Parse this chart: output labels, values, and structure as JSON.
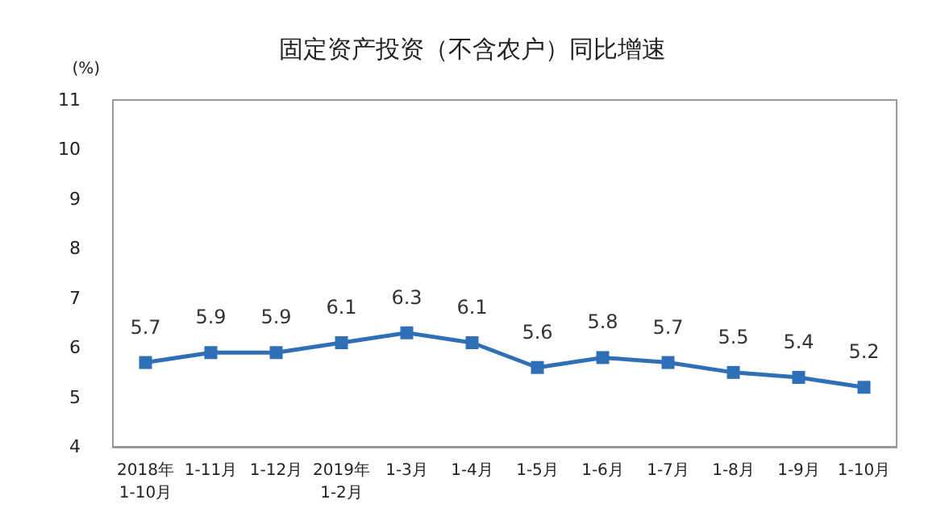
{
  "chart_data": {
    "type": "line",
    "title": "固定资产投资（不含农户）同比增速",
    "ylabel": "(%)",
    "categories": [
      "2018年\n1-10月",
      "1-11月",
      "1-12月",
      "2019年\n1-2月",
      "1-3月",
      "1-4月",
      "1-5月",
      "1-6月",
      "1-7月",
      "1-8月",
      "1-9月",
      "1-10月"
    ],
    "series": [
      {
        "color": "#2e6fb7",
        "values": [
          5.7,
          5.9,
          5.9,
          6.1,
          6.3,
          6.1,
          5.6,
          5.8,
          5.7,
          5.5,
          5.4,
          5.2
        ]
      }
    ],
    "ylim": [
      4,
      11
    ],
    "yticks": [
      4,
      5,
      6,
      7,
      8,
      9,
      10,
      11
    ],
    "grid": false,
    "marker": "square",
    "line_style": "solid",
    "data_labels": true
  }
}
